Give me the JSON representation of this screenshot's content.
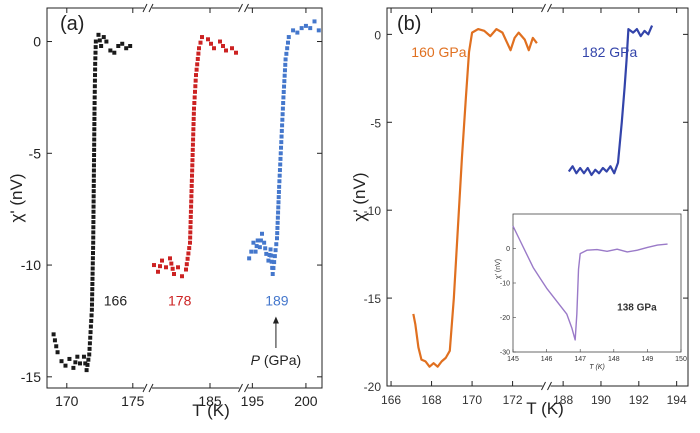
{
  "chart_data": [
    {
      "panel_label": "(a)",
      "type": "scatter",
      "ylabel": "χ' (nV)",
      "xlabel": "T (K)",
      "ylim": [
        -15.5,
        1.5
      ],
      "yticks": [
        0,
        -5,
        -10,
        -15
      ],
      "x_segments": [
        {
          "range": [
            168.5,
            176
          ],
          "ticks": [
            170,
            175
          ]
        },
        {
          "range": [
            182,
            186.5
          ],
          "ticks": [
            185
          ]
        },
        {
          "range": [
            194.5,
            201.5
          ],
          "ticks": [
            195,
            200
          ]
        }
      ],
      "series": [
        {
          "name": "166",
          "color": "#1a1a1a",
          "segment": 0,
          "points": [
            [
              169,
              -13.1
            ],
            [
              169.3,
              -13.9
            ],
            [
              169.6,
              -14.3
            ],
            [
              169.9,
              -14.5
            ],
            [
              170.2,
              -14.2
            ],
            [
              170.5,
              -14.6
            ],
            [
              170.8,
              -14.1
            ],
            [
              171.0,
              -14.4
            ],
            [
              171.3,
              -14.1
            ],
            [
              171.5,
              -14.7
            ],
            [
              171.7,
              -14.0
            ],
            [
              171.9,
              -12.0
            ],
            [
              172.0,
              -9.0
            ],
            [
              172.05,
              -6.0
            ],
            [
              172.1,
              -3.0
            ],
            [
              172.15,
              -1.0
            ],
            [
              172.2,
              0.0
            ],
            [
              172.4,
              0.3
            ],
            [
              172.6,
              -0.2
            ],
            [
              172.8,
              0.2
            ],
            [
              173.0,
              0.0
            ],
            [
              173.3,
              -0.4
            ],
            [
              173.6,
              -0.5
            ],
            [
              173.9,
              -0.2
            ],
            [
              174.2,
              -0.1
            ],
            [
              174.5,
              -0.3
            ],
            [
              174.8,
              -0.2
            ]
          ],
          "label": "166",
          "label_pos": [
            172.8,
            -11.8
          ]
        },
        {
          "name": "178",
          "color": "#cc2222",
          "segment": 1,
          "points": [
            [
              182.2,
              -10.0
            ],
            [
              182.4,
              -10.3
            ],
            [
              182.6,
              -9.8
            ],
            [
              182.8,
              -10.1
            ],
            [
              183.0,
              -9.7
            ],
            [
              183.2,
              -10.4
            ],
            [
              183.4,
              -10.1
            ],
            [
              183.6,
              -10.5
            ],
            [
              183.8,
              -10.2
            ],
            [
              184.0,
              -9.0
            ],
            [
              184.1,
              -6.0
            ],
            [
              184.2,
              -3.0
            ],
            [
              184.3,
              -1.5
            ],
            [
              184.45,
              -0.3
            ],
            [
              184.6,
              0.2
            ],
            [
              184.9,
              0.1
            ],
            [
              185.2,
              -0.3
            ],
            [
              185.5,
              0.0
            ],
            [
              185.8,
              -0.4
            ],
            [
              186.1,
              -0.3
            ],
            [
              186.3,
              -0.5
            ]
          ],
          "label": "178",
          "label_pos": [
            182.9,
            -11.8
          ]
        },
        {
          "name": "189",
          "color": "#4477cc",
          "segment": 2,
          "points": [
            [
              194.7,
              -9.7
            ],
            [
              194.9,
              -9.4
            ],
            [
              195.1,
              -9.0
            ],
            [
              195.3,
              -9.4
            ],
            [
              195.5,
              -8.9
            ],
            [
              195.7,
              -9.2
            ],
            [
              195.9,
              -8.6
            ],
            [
              196.1,
              -9.0
            ],
            [
              196.3,
              -9.5
            ],
            [
              196.5,
              -9.8
            ],
            [
              196.7,
              -9.3
            ],
            [
              196.9,
              -10.4
            ],
            [
              197.1,
              -9.6
            ],
            [
              197.3,
              -8.8
            ],
            [
              197.5,
              -6.5
            ],
            [
              197.7,
              -4.5
            ],
            [
              197.9,
              -2.5
            ],
            [
              198.1,
              -0.8
            ],
            [
              198.4,
              0.2
            ],
            [
              198.8,
              0.5
            ],
            [
              199.2,
              0.4
            ],
            [
              199.6,
              0.6
            ],
            [
              200.0,
              0.7
            ],
            [
              200.4,
              0.6
            ],
            [
              200.8,
              0.9
            ],
            [
              201.2,
              0.5
            ]
          ],
          "label": "189",
          "label_pos": [
            196.2,
            -11.8
          ]
        }
      ],
      "annotation": {
        "prefix": "P",
        "suffix": " (GPa)",
        "x": 197.2,
        "y_from": -13.8,
        "y_to": -12.3
      }
    },
    {
      "panel_label": "(b)",
      "type": "line",
      "ylabel": "χ' (nV)",
      "xlabel": "T (K)",
      "ylim": [
        -20,
        1.5
      ],
      "yticks": [
        0,
        -5,
        -10,
        -15,
        -20
      ],
      "x_segments": [
        {
          "range": [
            165.8,
            173.6
          ],
          "ticks": [
            166,
            168,
            170,
            172
          ]
        },
        {
          "range": [
            187.2,
            194.6
          ],
          "ticks": [
            188,
            190,
            192,
            194
          ]
        }
      ],
      "series": [
        {
          "name": "160 GPa",
          "color": "#e07020",
          "segment": 0,
          "points": [
            [
              167.1,
              -15.9
            ],
            [
              167.2,
              -16.5
            ],
            [
              167.35,
              -17.8
            ],
            [
              167.5,
              -18.5
            ],
            [
              167.7,
              -18.6
            ],
            [
              167.9,
              -18.9
            ],
            [
              168.1,
              -18.7
            ],
            [
              168.3,
              -18.9
            ],
            [
              168.5,
              -18.6
            ],
            [
              168.7,
              -18.4
            ],
            [
              168.9,
              -18.0
            ],
            [
              169.1,
              -15.0
            ],
            [
              169.3,
              -11.0
            ],
            [
              169.5,
              -7.0
            ],
            [
              169.7,
              -3.5
            ],
            [
              169.85,
              -1.0
            ],
            [
              170.0,
              0.1
            ],
            [
              170.3,
              0.3
            ],
            [
              170.6,
              0.2
            ],
            [
              170.9,
              -0.1
            ],
            [
              171.2,
              0.3
            ],
            [
              171.5,
              0.1
            ],
            [
              171.7,
              -0.4
            ],
            [
              171.9,
              -0.9
            ],
            [
              172.1,
              -0.2
            ],
            [
              172.3,
              0.1
            ],
            [
              172.6,
              -0.3
            ],
            [
              172.8,
              -0.9
            ],
            [
              173.0,
              -0.2
            ],
            [
              173.2,
              -0.5
            ]
          ],
          "label": "160 GPa",
          "label_pos": [
            167.0,
            -1.3
          ]
        },
        {
          "name": "182 GPa",
          "color": "#3344aa",
          "segment": 1,
          "points": [
            [
              188.3,
              -7.8
            ],
            [
              188.5,
              -7.5
            ],
            [
              188.7,
              -7.9
            ],
            [
              188.9,
              -7.6
            ],
            [
              189.1,
              -7.9
            ],
            [
              189.3,
              -7.6
            ],
            [
              189.5,
              -8.0
            ],
            [
              189.7,
              -7.7
            ],
            [
              189.9,
              -7.9
            ],
            [
              190.1,
              -7.6
            ],
            [
              190.3,
              -7.8
            ],
            [
              190.5,
              -7.5
            ],
            [
              190.7,
              -7.9
            ],
            [
              190.9,
              -7.3
            ],
            [
              191.1,
              -5.0
            ],
            [
              191.25,
              -3.0
            ],
            [
              191.35,
              -1.5
            ],
            [
              191.45,
              0.3
            ],
            [
              191.7,
              0.1
            ],
            [
              191.9,
              0.3
            ],
            [
              192.1,
              -0.1
            ],
            [
              192.3,
              0.2
            ],
            [
              192.5,
              0.0
            ],
            [
              192.7,
              0.5
            ]
          ],
          "label": "182 GPa",
          "label_pos": [
            189.0,
            -1.3
          ]
        }
      ],
      "inset": {
        "xlabel": "T (K)",
        "ylabel": "χ' (nV)",
        "xlim": [
          145,
          150
        ],
        "ylim": [
          -30,
          10
        ],
        "xticks": [
          145,
          146,
          147,
          148,
          149,
          150
        ],
        "yticks": [
          0,
          -10,
          -20,
          -30
        ],
        "label": "138 GPa",
        "color": "#9a7ac8",
        "points": [
          [
            145.0,
            6.5
          ],
          [
            145.2,
            2.5
          ],
          [
            145.4,
            -1.5
          ],
          [
            145.6,
            -5.5
          ],
          [
            145.8,
            -8.5
          ],
          [
            146.0,
            -11.5
          ],
          [
            146.2,
            -14.0
          ],
          [
            146.4,
            -16.5
          ],
          [
            146.6,
            -19.0
          ],
          [
            146.75,
            -23.0
          ],
          [
            146.85,
            -26.5
          ],
          [
            146.9,
            -19.0
          ],
          [
            146.95,
            -6.0
          ],
          [
            147.0,
            -1.5
          ],
          [
            147.2,
            -0.5
          ],
          [
            147.5,
            -0.3
          ],
          [
            147.8,
            -0.8
          ],
          [
            148.1,
            -0.2
          ],
          [
            148.4,
            -1.0
          ],
          [
            148.7,
            -0.5
          ],
          [
            149.0,
            0.3
          ],
          [
            149.3,
            1.0
          ],
          [
            149.6,
            1.3
          ]
        ]
      }
    }
  ]
}
